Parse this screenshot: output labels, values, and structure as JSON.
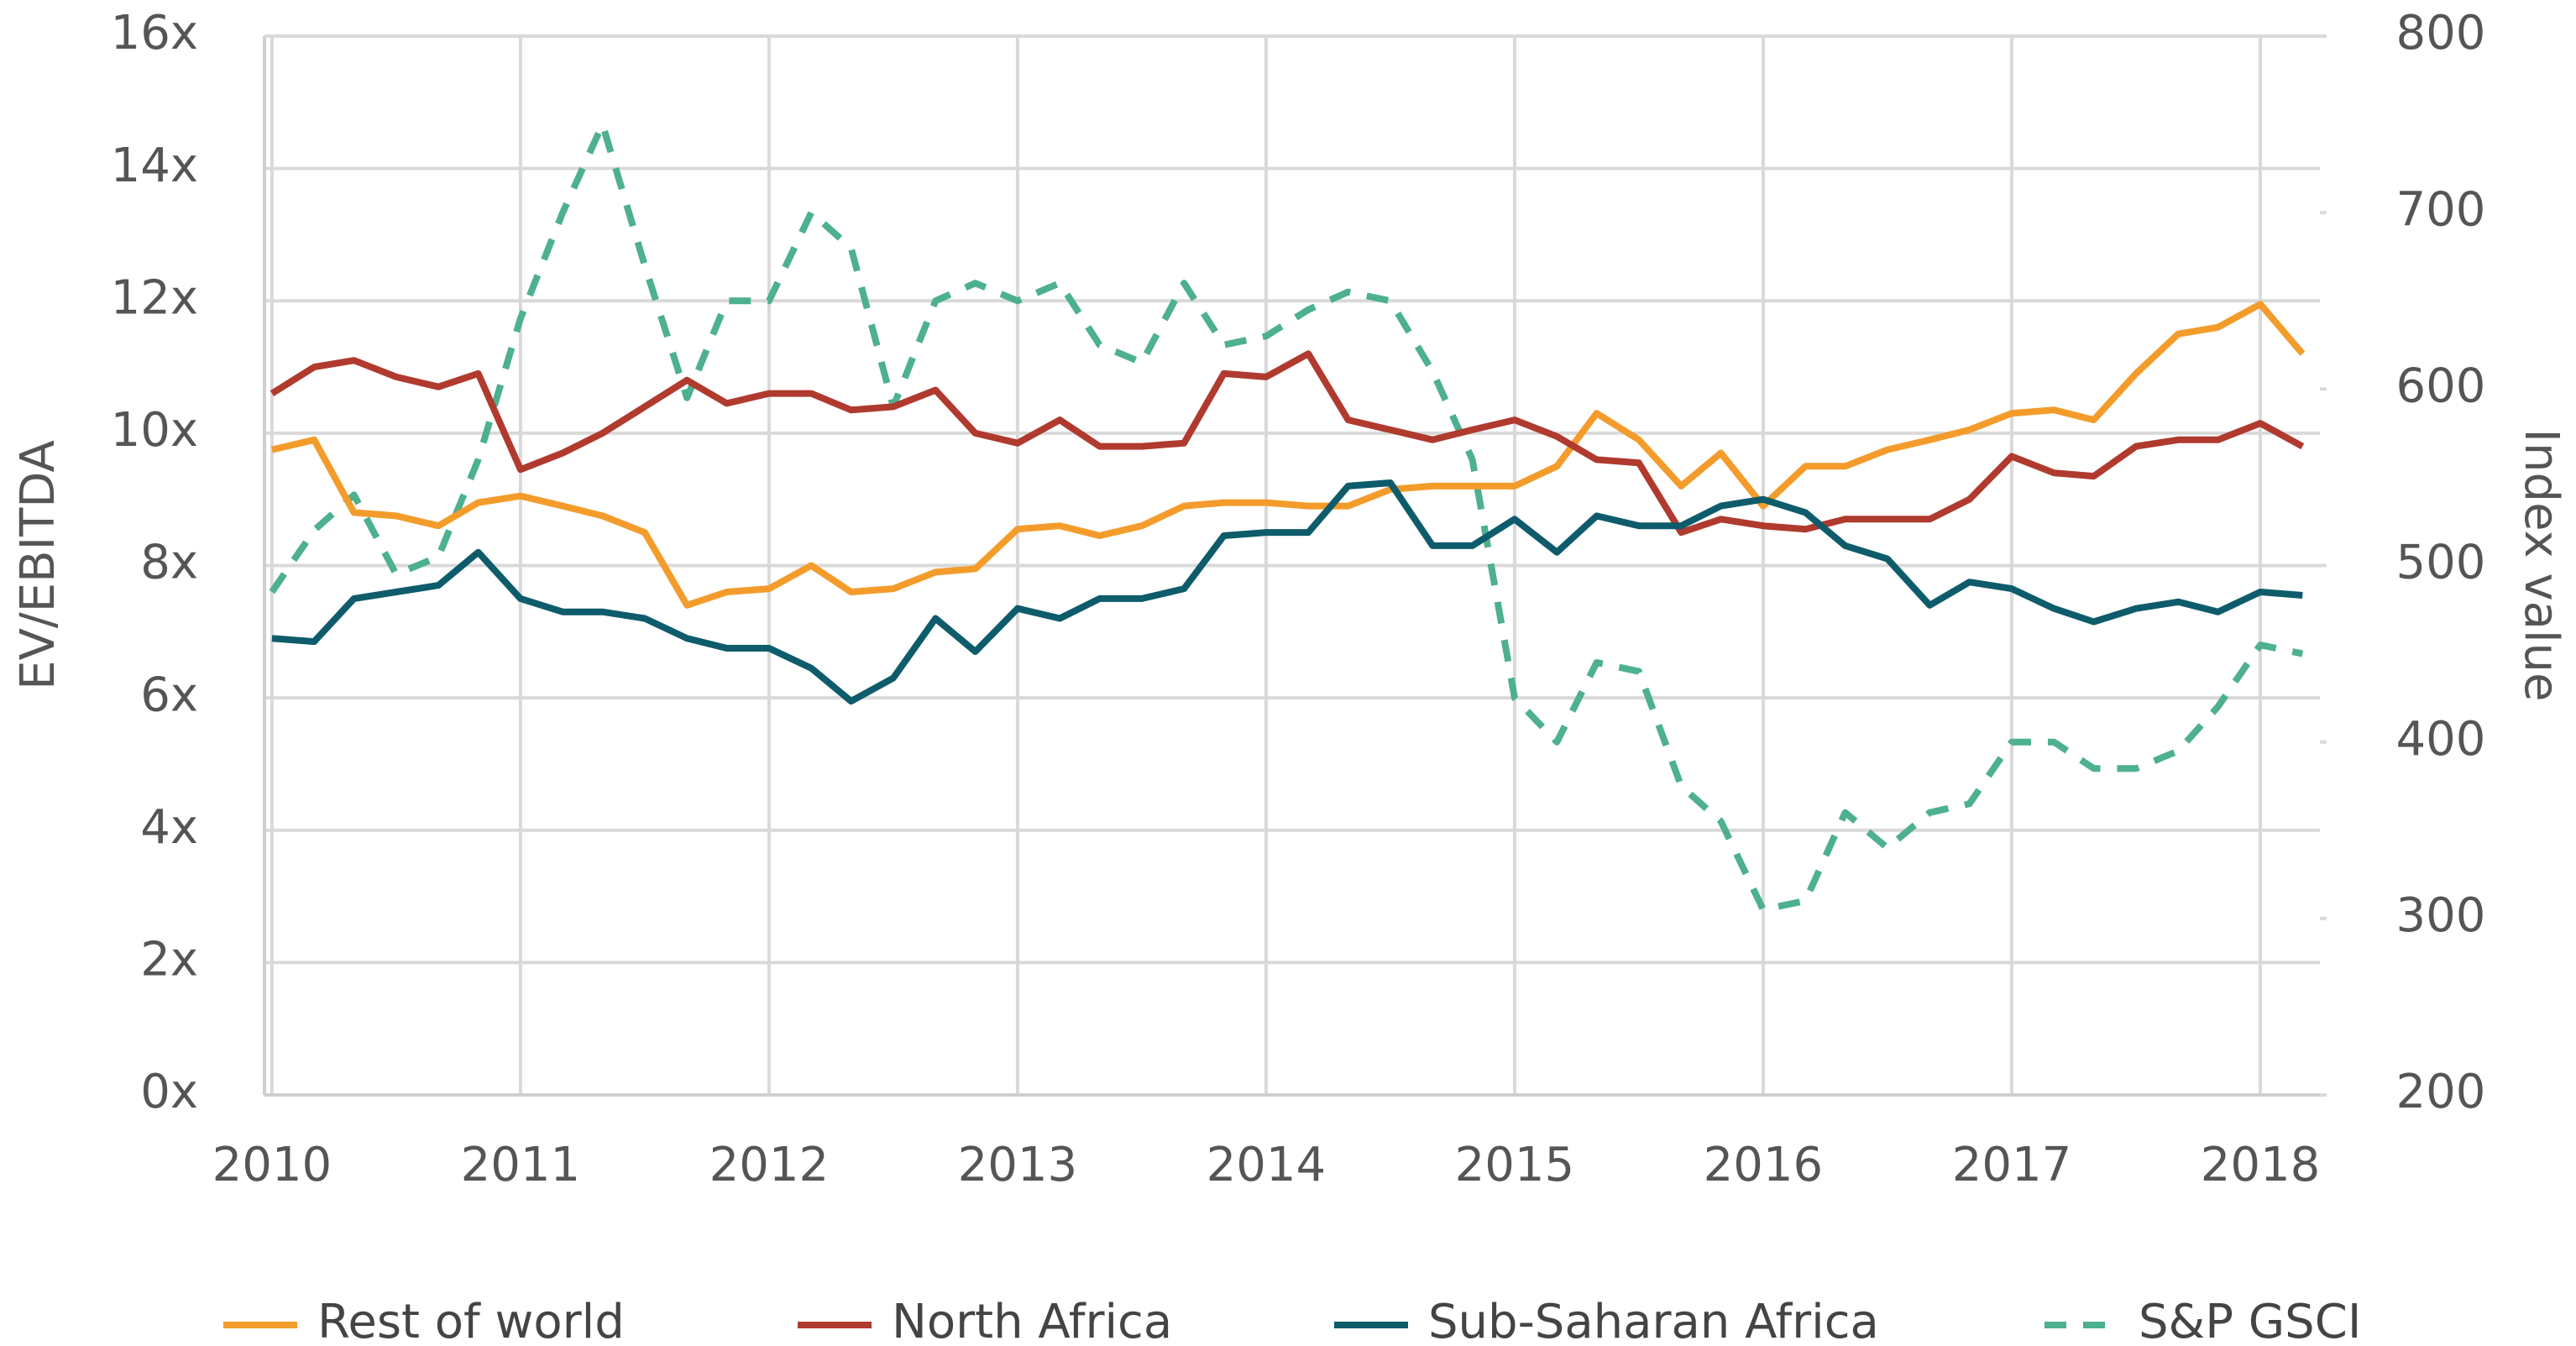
{
  "chart_data": {
    "type": "line",
    "x": [
      2010,
      2010.17,
      2010.33,
      2010.5,
      2010.67,
      2010.83,
      2011,
      2011.17,
      2011.33,
      2011.5,
      2011.67,
      2011.83,
      2012,
      2012.17,
      2012.33,
      2012.5,
      2012.67,
      2012.83,
      2013,
      2013.17,
      2013.33,
      2013.5,
      2013.67,
      2013.83,
      2014,
      2014.17,
      2014.33,
      2014.5,
      2014.67,
      2014.83,
      2015,
      2015.17,
      2015.33,
      2015.5,
      2015.67,
      2015.83,
      2016,
      2016.17,
      2016.33,
      2016.5,
      2016.67,
      2016.83,
      2017,
      2017.17,
      2017.33,
      2017.5,
      2017.67,
      2017.83,
      2018,
      2018.17
    ],
    "series": [
      {
        "name": "Rest of world",
        "color": "#f39c2c",
        "axis": "y",
        "values": [
          9.75,
          9.9,
          8.8,
          8.75,
          8.6,
          8.95,
          9.05,
          8.9,
          8.75,
          8.5,
          7.4,
          7.6,
          7.65,
          8.0,
          7.6,
          7.65,
          7.9,
          7.95,
          8.55,
          8.6,
          8.45,
          8.6,
          8.9,
          8.95,
          8.95,
          8.9,
          8.9,
          9.15,
          9.2,
          9.2,
          9.2,
          9.5,
          10.3,
          9.9,
          9.2,
          9.7,
          8.9,
          9.5,
          9.5,
          9.75,
          9.9,
          10.05,
          10.3,
          10.35,
          10.2,
          10.9,
          11.5,
          11.6,
          11.95,
          11.2
        ]
      },
      {
        "name": "North Africa",
        "color": "#b03a2e",
        "axis": "y",
        "values": [
          10.6,
          11.0,
          11.1,
          10.85,
          10.7,
          10.9,
          9.45,
          9.7,
          10.0,
          10.4,
          10.8,
          10.45,
          10.6,
          10.6,
          10.35,
          10.4,
          10.65,
          10.0,
          9.85,
          10.2,
          9.8,
          9.8,
          9.85,
          10.9,
          10.85,
          11.2,
          10.2,
          10.05,
          9.9,
          10.05,
          10.2,
          9.95,
          9.6,
          9.55,
          8.5,
          8.7,
          8.6,
          8.55,
          8.7,
          8.7,
          8.7,
          9.0,
          9.65,
          9.4,
          9.35,
          9.8,
          9.9,
          9.9,
          10.15,
          9.8
        ]
      },
      {
        "name": "Sub-Saharan Africa",
        "color": "#0e5c6b",
        "axis": "y",
        "values": [
          6.9,
          6.85,
          7.5,
          7.6,
          7.7,
          8.2,
          7.5,
          7.3,
          7.3,
          7.2,
          6.9,
          6.75,
          6.75,
          6.45,
          5.95,
          6.3,
          7.2,
          6.7,
          7.35,
          7.2,
          7.5,
          7.5,
          7.65,
          8.45,
          8.5,
          8.5,
          9.2,
          9.25,
          8.3,
          8.3,
          8.7,
          8.2,
          8.75,
          8.6,
          8.6,
          8.9,
          9.0,
          8.8,
          8.3,
          8.1,
          7.4,
          7.75,
          7.65,
          7.35,
          7.15,
          7.35,
          7.45,
          7.3,
          7.6,
          7.55
        ]
      },
      {
        "name": "S&P GSCI",
        "color": "#4db08f",
        "axis": "y2",
        "dashed": true,
        "values": [
          485,
          520,
          540,
          495,
          505,
          560,
          640,
          700,
          750,
          670,
          595,
          650,
          650,
          700,
          680,
          590,
          650,
          660,
          650,
          660,
          625,
          615,
          660,
          625,
          630,
          645,
          655,
          650,
          610,
          560,
          425,
          400,
          445,
          440,
          375,
          355,
          305,
          310,
          360,
          340,
          360,
          365,
          400,
          400,
          385,
          385,
          395,
          420,
          455,
          450
        ]
      }
    ],
    "xlim": [
      2009.97,
      2018.24
    ],
    "xticks": [
      2010,
      2011,
      2012,
      2013,
      2014,
      2015,
      2016,
      2017,
      2018
    ],
    "ylabel": "EV/EBITDA",
    "ylim": [
      0,
      16
    ],
    "yticks": [
      {
        "value": 0,
        "label": "0x"
      },
      {
        "value": 2,
        "label": "2x"
      },
      {
        "value": 4,
        "label": "4x"
      },
      {
        "value": 6,
        "label": "6x"
      },
      {
        "value": 8,
        "label": "8x"
      },
      {
        "value": 10,
        "label": "10x"
      },
      {
        "value": 12,
        "label": "12x"
      },
      {
        "value": 14,
        "label": "14x"
      },
      {
        "value": 16,
        "label": "16x"
      }
    ],
    "y2label": "Index value",
    "y2lim": [
      200,
      800
    ],
    "y2ticks": [
      200,
      300,
      400,
      500,
      600,
      700,
      800
    ],
    "grid": true,
    "legend": "bottom"
  }
}
